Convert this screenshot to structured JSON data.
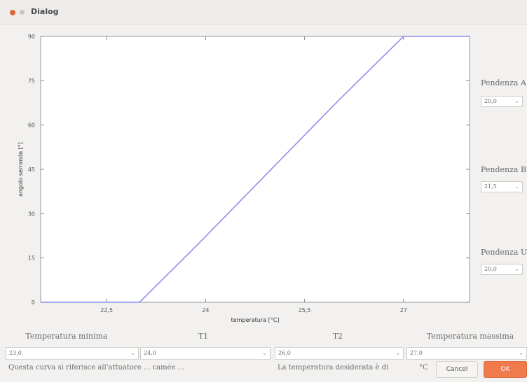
{
  "window": {
    "title": "Dialog"
  },
  "chart_data": {
    "type": "line",
    "xlabel": "temperatura [°C]",
    "ylabel": "angolo serranda [°]",
    "xlim": [
      21.5,
      28.0
    ],
    "ylim": [
      0,
      90
    ],
    "x_ticks": [
      22.5,
      24,
      25.5,
      27
    ],
    "x_tick_labels": [
      "22,5",
      "24",
      "25,5",
      "27"
    ],
    "y_ticks": [
      0,
      15,
      30,
      45,
      60,
      75,
      90
    ],
    "y_tick_labels": [
      "0",
      "15",
      "30",
      "45",
      "60",
      "75",
      "90"
    ],
    "series": [
      {
        "x": [
          21.5,
          23.0,
          23.9,
          25.3,
          26.0,
          27.0,
          28.0
        ],
        "y": [
          0,
          0,
          20,
          52,
          68,
          90,
          90
        ],
        "color": "#8f8ff0"
      }
    ],
    "grid": false
  },
  "side_panel": {
    "pendenza_a": {
      "label": "Pendenza A",
      "value": "20,0"
    },
    "pendenza_b": {
      "label": "Pendenza B",
      "value": "21,5"
    },
    "pendenza_u": {
      "label": "Pendenza U",
      "value": "20,0"
    }
  },
  "bottom_fields": {
    "temp_min": {
      "label": "Temperatura minima",
      "value": "23,0"
    },
    "t1": {
      "label": "T1",
      "value": "24,0"
    },
    "t2": {
      "label": "T2",
      "value": "26,0"
    },
    "temp_max": {
      "label": "Temperatura massima",
      "value": "27,0"
    }
  },
  "status": {
    "left_text": "Questa curva si riferisce all'attuatore ... camée ...",
    "right_text": "La temperatura desiderata è di",
    "unit": "°C"
  },
  "buttons": {
    "cancel": "Cancel",
    "ok": "OK"
  }
}
